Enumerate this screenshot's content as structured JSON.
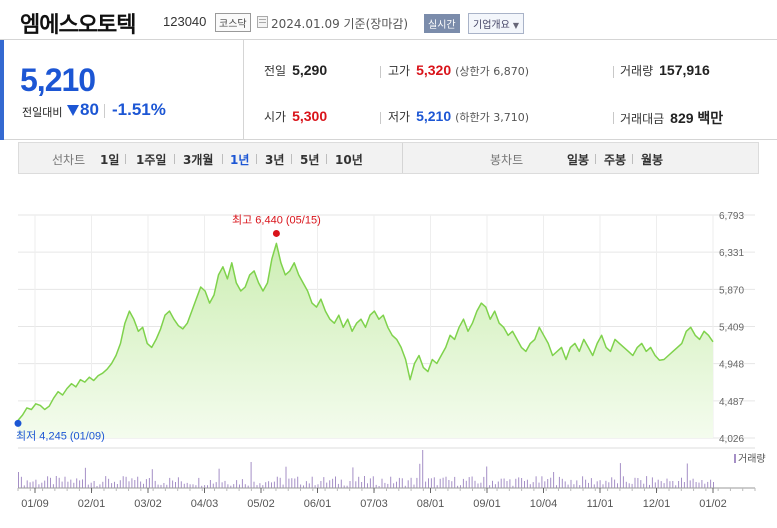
{
  "header": {
    "name": "엠에스오토텍",
    "code": "123040",
    "market": "코스닥",
    "date": "2024.01.09 기준(장마감)",
    "live_badge": "실시간",
    "company_button": "기업개요"
  },
  "quote": {
    "price": "5,210",
    "change_label": "전일대비",
    "change": "80",
    "change_rate": "-1.51%"
  },
  "stats": {
    "prev_close": {
      "label": "전일",
      "value": "5,290"
    },
    "high": {
      "label": "고가",
      "value": "5,320",
      "sub": "(상한가 6,870)"
    },
    "volume": {
      "label": "거래량",
      "value": "157,916"
    },
    "open": {
      "label": "시가",
      "value": "5,300"
    },
    "low": {
      "label": "저가",
      "value": "5,210",
      "sub": "(하한가 3,710)"
    },
    "turnover": {
      "label": "거래대금",
      "value": "829 백만"
    }
  },
  "tabs": {
    "period_label": "선차트",
    "periods": [
      "1일",
      "1주일",
      "3개월",
      "1년",
      "3년",
      "5년",
      "10년"
    ],
    "active_period": "1년",
    "candle_label": "봉차트",
    "candles": [
      "일봉",
      "주봉",
      "월봉"
    ]
  },
  "colors": {
    "line": "#7fd24c",
    "fill_top": "#cdeeb4",
    "fill_bottom": "#f4fcee",
    "down": "#1c56d4",
    "up": "#d9131a",
    "volume": "#a58fc6"
  },
  "chart_data": {
    "type": "area",
    "y_ticks": [
      "6,793",
      "6,331",
      "5,870",
      "5,409",
      "4,948",
      "4,487",
      "4,026"
    ],
    "ylim": [
      4026,
      6793
    ],
    "x_ticks": [
      "01/09",
      "02/01",
      "03/02",
      "04/03",
      "05/02",
      "06/01",
      "07/03",
      "08/01",
      "09/01",
      "10/04",
      "11/01",
      "12/01",
      "01/02"
    ],
    "max_label": "최고 6,440 (05/15)",
    "min_label": "최저 4,245 (01/09)",
    "volume_legend": "거래량",
    "series": [
      {
        "values": [
          4245,
          4310,
          4400,
          4380,
          4450,
          4430,
          4380,
          4420,
          4520,
          4600,
          4560,
          4640,
          4700,
          4660,
          4750,
          4720,
          4780,
          4740,
          4800,
          4830,
          4880,
          4950,
          5050,
          5200,
          5450,
          5600,
          5500,
          5350,
          5400,
          5200,
          5150,
          5250,
          5380,
          5550,
          5600,
          5500,
          5420,
          5380,
          5450,
          5600,
          5750,
          5900,
          5850,
          5700,
          5800,
          6050,
          6150,
          6000,
          6200,
          5950,
          5850,
          5900,
          6050,
          6100,
          5950,
          5850,
          5950,
          6250,
          6440,
          6200,
          6050,
          6100,
          6200,
          6050,
          5950,
          5850,
          5700,
          5650,
          5750,
          5600,
          5500,
          5450,
          5550,
          5400,
          5500,
          5350,
          5450,
          5500,
          5400,
          5550,
          5600,
          5500,
          5550,
          5400,
          5300,
          5250,
          5150,
          5000,
          4750,
          4950,
          5050,
          4900,
          4850,
          5000,
          4950,
          5050,
          5150,
          5300,
          5250,
          5400,
          5500,
          5350,
          5450,
          5600,
          5700,
          5650,
          5500,
          5600,
          5450,
          5400,
          5300,
          5350,
          5250,
          5150,
          5100,
          5200,
          5250,
          5400,
          5300,
          5200,
          5050,
          5100,
          5150,
          5000,
          5150,
          5200,
          5100,
          5250,
          5150,
          5050,
          5200,
          5300,
          5150,
          5100,
          5250,
          5200,
          5150,
          5100,
          5050,
          5150,
          5200,
          5100,
          5150,
          5050,
          4990,
          5000,
          5050,
          5100,
          5150,
          5200,
          5350,
          5400,
          5300,
          5250,
          5350,
          5300,
          5220
        ]
      }
    ]
  }
}
